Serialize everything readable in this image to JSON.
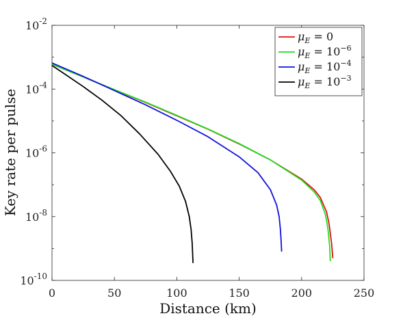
{
  "chart_data": {
    "type": "line",
    "title": "",
    "xlabel": "Distance (km)",
    "ylabel": "Key rate per pulse",
    "xlim": [
      0,
      250
    ],
    "ylim": [
      1e-10,
      0.01
    ],
    "yscale": "log",
    "grid": false,
    "legend_position": "top-right",
    "x_ticks": [
      {
        "value": 0,
        "label": "0"
      },
      {
        "value": 50,
        "label": "50"
      },
      {
        "value": 100,
        "label": "100"
      },
      {
        "value": 150,
        "label": "150"
      },
      {
        "value": 200,
        "label": "200"
      },
      {
        "value": 250,
        "label": "250"
      }
    ],
    "y_ticks": [
      {
        "value": 1e-10,
        "base": "10",
        "exp": "-10"
      },
      {
        "value": 1e-08,
        "base": "10",
        "exp": "-8"
      },
      {
        "value": 1e-06,
        "base": "10",
        "exp": "-6"
      },
      {
        "value": 0.0001,
        "base": "10",
        "exp": "-4"
      },
      {
        "value": 0.01,
        "base": "10",
        "exp": "-2"
      }
    ],
    "series": [
      {
        "legend_symbol": "μ",
        "legend_sub": "E",
        "legend_rel": " = ",
        "legend_base": "0",
        "legend_exp": "",
        "color": "#e01010",
        "x": [
          0,
          25,
          50,
          75,
          100,
          125,
          150,
          175,
          200,
          210,
          215,
          220,
          222,
          224,
          225
        ],
        "y": [
          0.0006,
          0.00024,
          9.5e-05,
          3.8e-05,
          1.45e-05,
          5.5e-06,
          1.9e-06,
          6e-07,
          1.5e-07,
          7e-08,
          4e-08,
          1.4e-08,
          6e-09,
          1.5e-09,
          5e-10
        ]
      },
      {
        "legend_symbol": "μ",
        "legend_sub": "E",
        "legend_rel": " = ",
        "legend_base": "10",
        "legend_exp": "−6",
        "color": "#22dd22",
        "x": [
          0,
          25,
          50,
          75,
          100,
          125,
          150,
          175,
          200,
          210,
          215,
          219,
          221,
          222.5,
          223
        ],
        "y": [
          0.0006,
          0.00024,
          9.6e-05,
          3.9e-05,
          1.5e-05,
          5.6e-06,
          1.95e-06,
          6e-07,
          1.4e-07,
          6e-08,
          3.2e-08,
          1.2e-08,
          4.5e-09,
          1.2e-09,
          4e-10
        ]
      },
      {
        "legend_symbol": "μ",
        "legend_sub": "E",
        "legend_rel": " = ",
        "legend_base": "10",
        "legend_exp": "−4",
        "color": "#1010dd",
        "x": [
          0,
          25,
          50,
          75,
          100,
          125,
          150,
          165,
          175,
          180,
          182,
          183,
          183.5,
          184
        ],
        "y": [
          0.00066,
          0.00025,
          9e-05,
          3.2e-05,
          1.05e-05,
          3.2e-06,
          7.5e-07,
          2.4e-07,
          7e-08,
          2.3e-08,
          1e-08,
          4e-09,
          2e-09,
          8e-10
        ]
      },
      {
        "legend_symbol": "μ",
        "legend_sub": "E",
        "legend_rel": " = ",
        "legend_base": "10",
        "legend_exp": "−3",
        "color": "#000000",
        "x": [
          0,
          10,
          25,
          40,
          55,
          70,
          85,
          95,
          102,
          107,
          110,
          111.5,
          112.3,
          113
        ],
        "y": [
          0.00055,
          0.0003,
          0.00012,
          4.5e-05,
          1.5e-05,
          4e-06,
          9e-07,
          2.6e-07,
          9e-08,
          3e-08,
          1e-08,
          3.8e-09,
          1.5e-09,
          3.5e-10
        ]
      }
    ]
  }
}
